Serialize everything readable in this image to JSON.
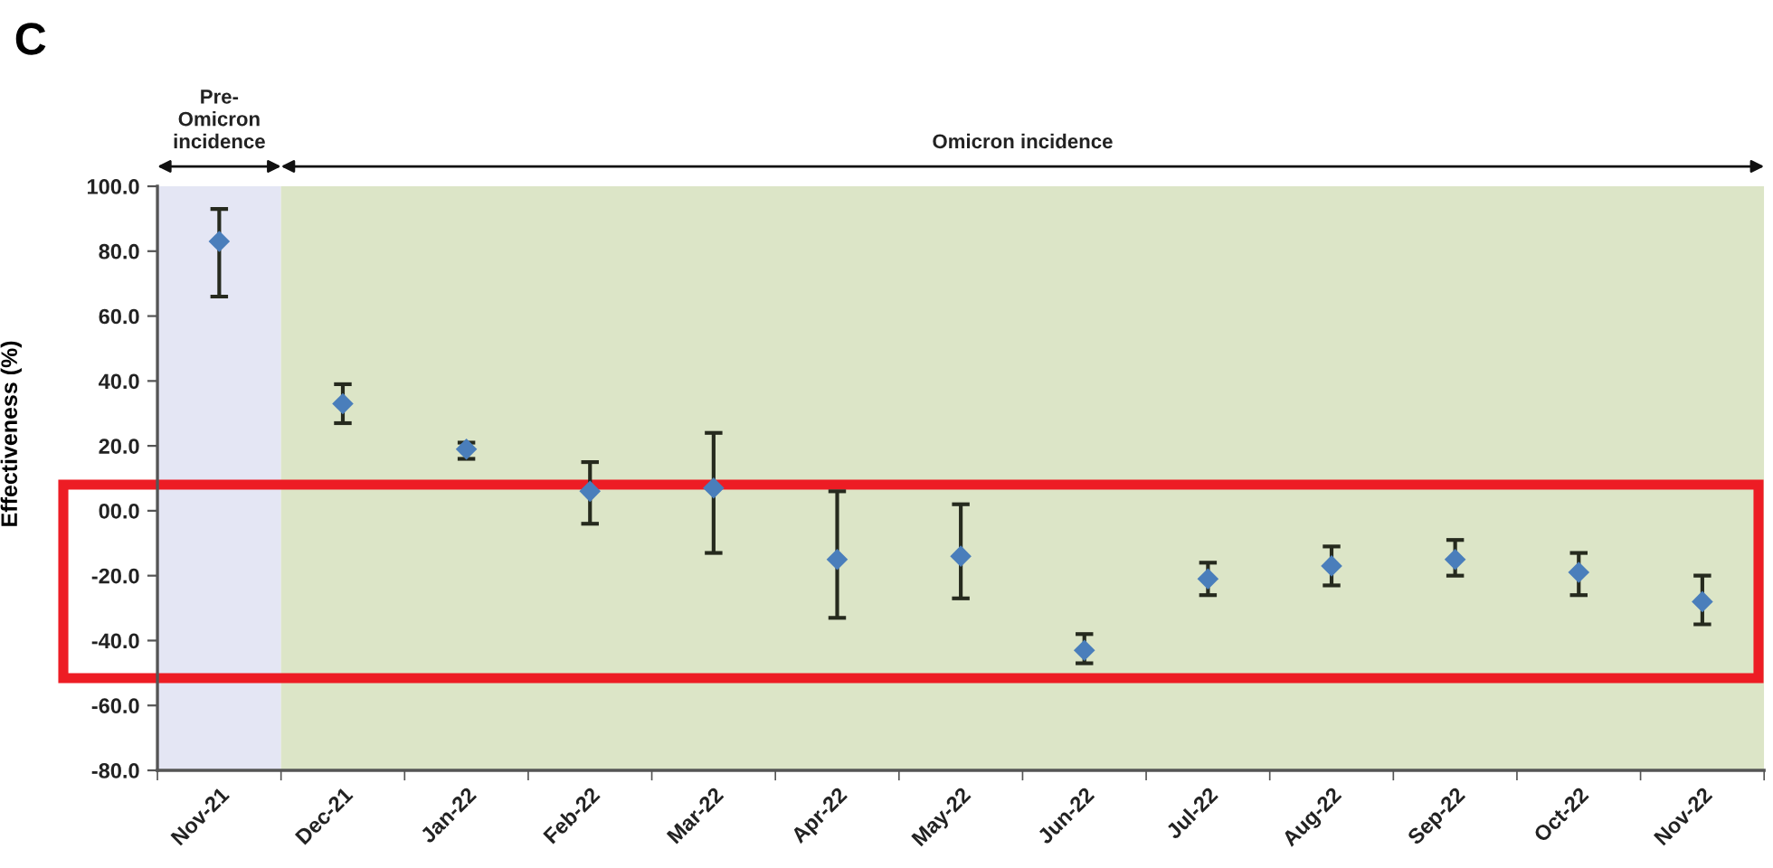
{
  "chart_data": {
    "type": "scatter",
    "title": "C",
    "ylabel": "Effectiveness (%)",
    "categories": [
      "Nov-21",
      "Dec-21",
      "Jan-22",
      "Feb-22",
      "Mar-22",
      "Apr-22",
      "May-22",
      "Jun-22",
      "Jul-22",
      "Aug-22",
      "Sep-22",
      "Oct-22",
      "Nov-22"
    ],
    "series": [
      {
        "color": "#4a7ebb",
        "values": [
          83,
          33,
          19,
          6,
          7,
          -15,
          -14,
          -43,
          -21,
          -17,
          -15,
          -19,
          -28
        ],
        "errors": [
          [
            66,
            93
          ],
          [
            27,
            39
          ],
          [
            16,
            21
          ],
          [
            -4,
            15
          ],
          [
            -13,
            24
          ],
          [
            -33,
            6
          ],
          [
            -27,
            2
          ],
          [
            -47,
            -38
          ],
          [
            -26,
            -16
          ],
          [
            -23,
            -11
          ],
          [
            -20,
            -9
          ],
          [
            -26,
            -13
          ],
          [
            -35,
            -20
          ]
        ]
      }
    ],
    "marker": "diamond",
    "grid": false,
    "ylim": [
      -80,
      100
    ],
    "yticks": [
      {
        "value": -80,
        "label": "-80.0"
      },
      {
        "value": -60,
        "label": "-60.0"
      },
      {
        "value": -40,
        "label": "-40.0"
      },
      {
        "value": -20,
        "label": "-20.0"
      },
      {
        "value": 0,
        "label": "00.0"
      },
      {
        "value": 20,
        "label": "20.0"
      },
      {
        "value": 40,
        "label": "40.0"
      },
      {
        "value": 60,
        "label": "60.0"
      },
      {
        "value": 80,
        "label": "80.0"
      },
      {
        "value": 100,
        "label": "100.0"
      }
    ],
    "bands": [
      {
        "axis": "x",
        "from": "Nov-21",
        "to": "Nov-21",
        "label": "Pre-\nOmicron\nincidence",
        "color": "#e4e6f4"
      },
      {
        "axis": "x",
        "from": "Dec-21",
        "to": "Nov-22",
        "label": "Omicron incidence",
        "color": "#dce5c7"
      }
    ]
  }
}
